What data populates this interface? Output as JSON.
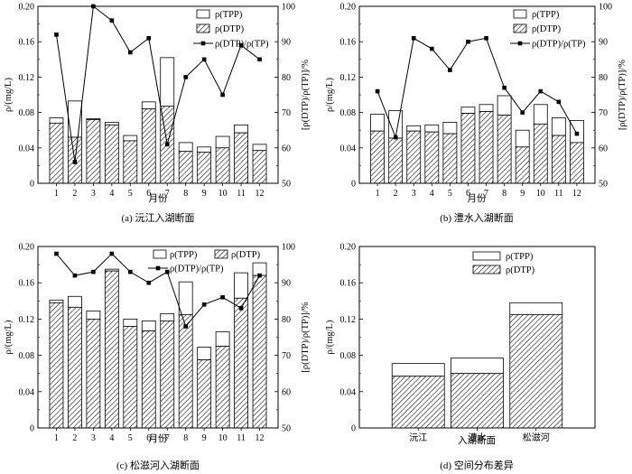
{
  "chart_data": [
    {
      "type": "bar",
      "panel_caption": "(a) 沅江入湖断面",
      "xlabel": "月份",
      "ylabel": "ρ/(mg/L)",
      "y2label": "[ρ(DTP)/ρ(TP)]/%",
      "categories": [
        "1",
        "2",
        "3",
        "4",
        "5",
        "6",
        "7",
        "8",
        "9",
        "10",
        "11",
        "12"
      ],
      "ylim": [
        0,
        0.2
      ],
      "yticks": [
        "0",
        "0.04",
        "0.08",
        "0.12",
        "0.16",
        "0.20"
      ],
      "y2lim": [
        50,
        100
      ],
      "y2ticks": [
        "50",
        "60",
        "70",
        "80",
        "90",
        "100"
      ],
      "legend": [
        "ρ(TPP)",
        "ρ(DTP)",
        "ρ(DTP)/ρ(TP)"
      ],
      "legend_position": "top-right",
      "series": [
        {
          "name": "ρ(TPP)",
          "kind": "stacked-bar",
          "values": [
            0.006,
            0.041,
            0.001,
            0.003,
            0.006,
            0.008,
            0.055,
            0.01,
            0.006,
            0.013,
            0.009,
            0.007
          ]
        },
        {
          "name": "ρ(DTP)",
          "kind": "bar",
          "values": [
            0.068,
            0.052,
            0.072,
            0.066,
            0.048,
            0.084,
            0.087,
            0.036,
            0.035,
            0.04,
            0.057,
            0.037
          ]
        },
        {
          "name": "ρ(DTP)/ρ(TP)",
          "kind": "line",
          "axis": "right",
          "values": [
            92,
            56,
            100,
            96,
            87,
            91,
            61,
            80,
            85,
            75,
            89,
            85
          ]
        }
      ]
    },
    {
      "type": "bar",
      "panel_caption": "(b) 澧水入湖断面",
      "xlabel": "月份",
      "ylabel": "ρ/(mg/L)",
      "y2label": "[ρ(DTP)/ρ(TP)]/%",
      "categories": [
        "1",
        "2",
        "3",
        "4",
        "5",
        "6",
        "7",
        "8",
        "9",
        "10",
        "11",
        "12"
      ],
      "ylim": [
        0,
        0.2
      ],
      "yticks": [
        "0",
        "0.04",
        "0.08",
        "0.12",
        "0.16",
        "0.20"
      ],
      "y2lim": [
        50,
        100
      ],
      "y2ticks": [
        "50",
        "60",
        "70",
        "80",
        "90",
        "100"
      ],
      "legend": [
        "ρ(TPP)",
        "ρ(DTP)",
        "ρ(DTP)/ρ(TP)"
      ],
      "legend_position": "top-right",
      "series": [
        {
          "name": "ρ(TPP)",
          "kind": "stacked-bar",
          "values": [
            0.019,
            0.031,
            0.006,
            0.008,
            0.013,
            0.007,
            0.008,
            0.022,
            0.019,
            0.022,
            0.02,
            0.025
          ]
        },
        {
          "name": "ρ(DTP)",
          "kind": "bar",
          "values": [
            0.059,
            0.051,
            0.059,
            0.058,
            0.056,
            0.079,
            0.081,
            0.077,
            0.041,
            0.067,
            0.054,
            0.046
          ]
        },
        {
          "name": "ρ(DTP)/ρ(TP)",
          "kind": "line",
          "axis": "right",
          "values": [
            76,
            63,
            91,
            88,
            82,
            90,
            91,
            77,
            70,
            76,
            73,
            64
          ]
        }
      ]
    },
    {
      "type": "bar",
      "panel_caption": "(c) 松滋河入湖断面",
      "xlabel": "月份",
      "ylabel": "ρ/(mg/L)",
      "y2label": "[ρ(DTP)/ρ(TP)]/%",
      "categories": [
        "1",
        "2",
        "3",
        "4",
        "5",
        "6",
        "7",
        "8",
        "9",
        "10",
        "11",
        "12"
      ],
      "ylim": [
        0,
        0.2
      ],
      "yticks": [
        "0",
        "0.04",
        "0.08",
        "0.12",
        "0.16",
        "0.20"
      ],
      "y2lim": [
        50,
        100
      ],
      "y2ticks": [
        "50",
        "60",
        "70",
        "80",
        "90",
        "100"
      ],
      "legend": [
        "ρ(TPP)",
        "ρ(DTP)",
        "ρ(DTP)/ρ(TP)"
      ],
      "legend_position": "top-right",
      "series": [
        {
          "name": "ρ(TPP)",
          "kind": "stacked-bar",
          "values": [
            0.003,
            0.012,
            0.009,
            0.002,
            0.008,
            0.011,
            0.008,
            0.036,
            0.014,
            0.016,
            0.028,
            0.014
          ]
        },
        {
          "name": "ρ(DTP)",
          "kind": "bar",
          "values": [
            0.138,
            0.133,
            0.12,
            0.173,
            0.112,
            0.107,
            0.118,
            0.125,
            0.075,
            0.09,
            0.143,
            0.168
          ]
        },
        {
          "name": "ρ(DTP)/ρ(TP)",
          "kind": "line",
          "axis": "right",
          "values": [
            98,
            92,
            93,
            98,
            93,
            90,
            93,
            78,
            84,
            86,
            83,
            92
          ]
        }
      ]
    },
    {
      "type": "bar",
      "panel_caption": "(d) 空间分布差异",
      "xlabel": "入湖断面",
      "ylabel": "ρ/(mg/L)",
      "categories": [
        "沅江",
        "澧水",
        "松滋河"
      ],
      "ylim": [
        0,
        0.2
      ],
      "yticks": [
        "0",
        "0.04",
        "0.08",
        "0.12",
        "0.16",
        "0.20"
      ],
      "legend": [
        "ρ(TPP)",
        "ρ(DTP)"
      ],
      "legend_position": "top-center",
      "series": [
        {
          "name": "ρ(TPP)",
          "kind": "stacked-bar",
          "values": [
            0.014,
            0.017,
            0.013
          ]
        },
        {
          "name": "ρ(DTP)",
          "kind": "bar",
          "values": [
            0.057,
            0.06,
            0.125
          ]
        }
      ]
    }
  ]
}
